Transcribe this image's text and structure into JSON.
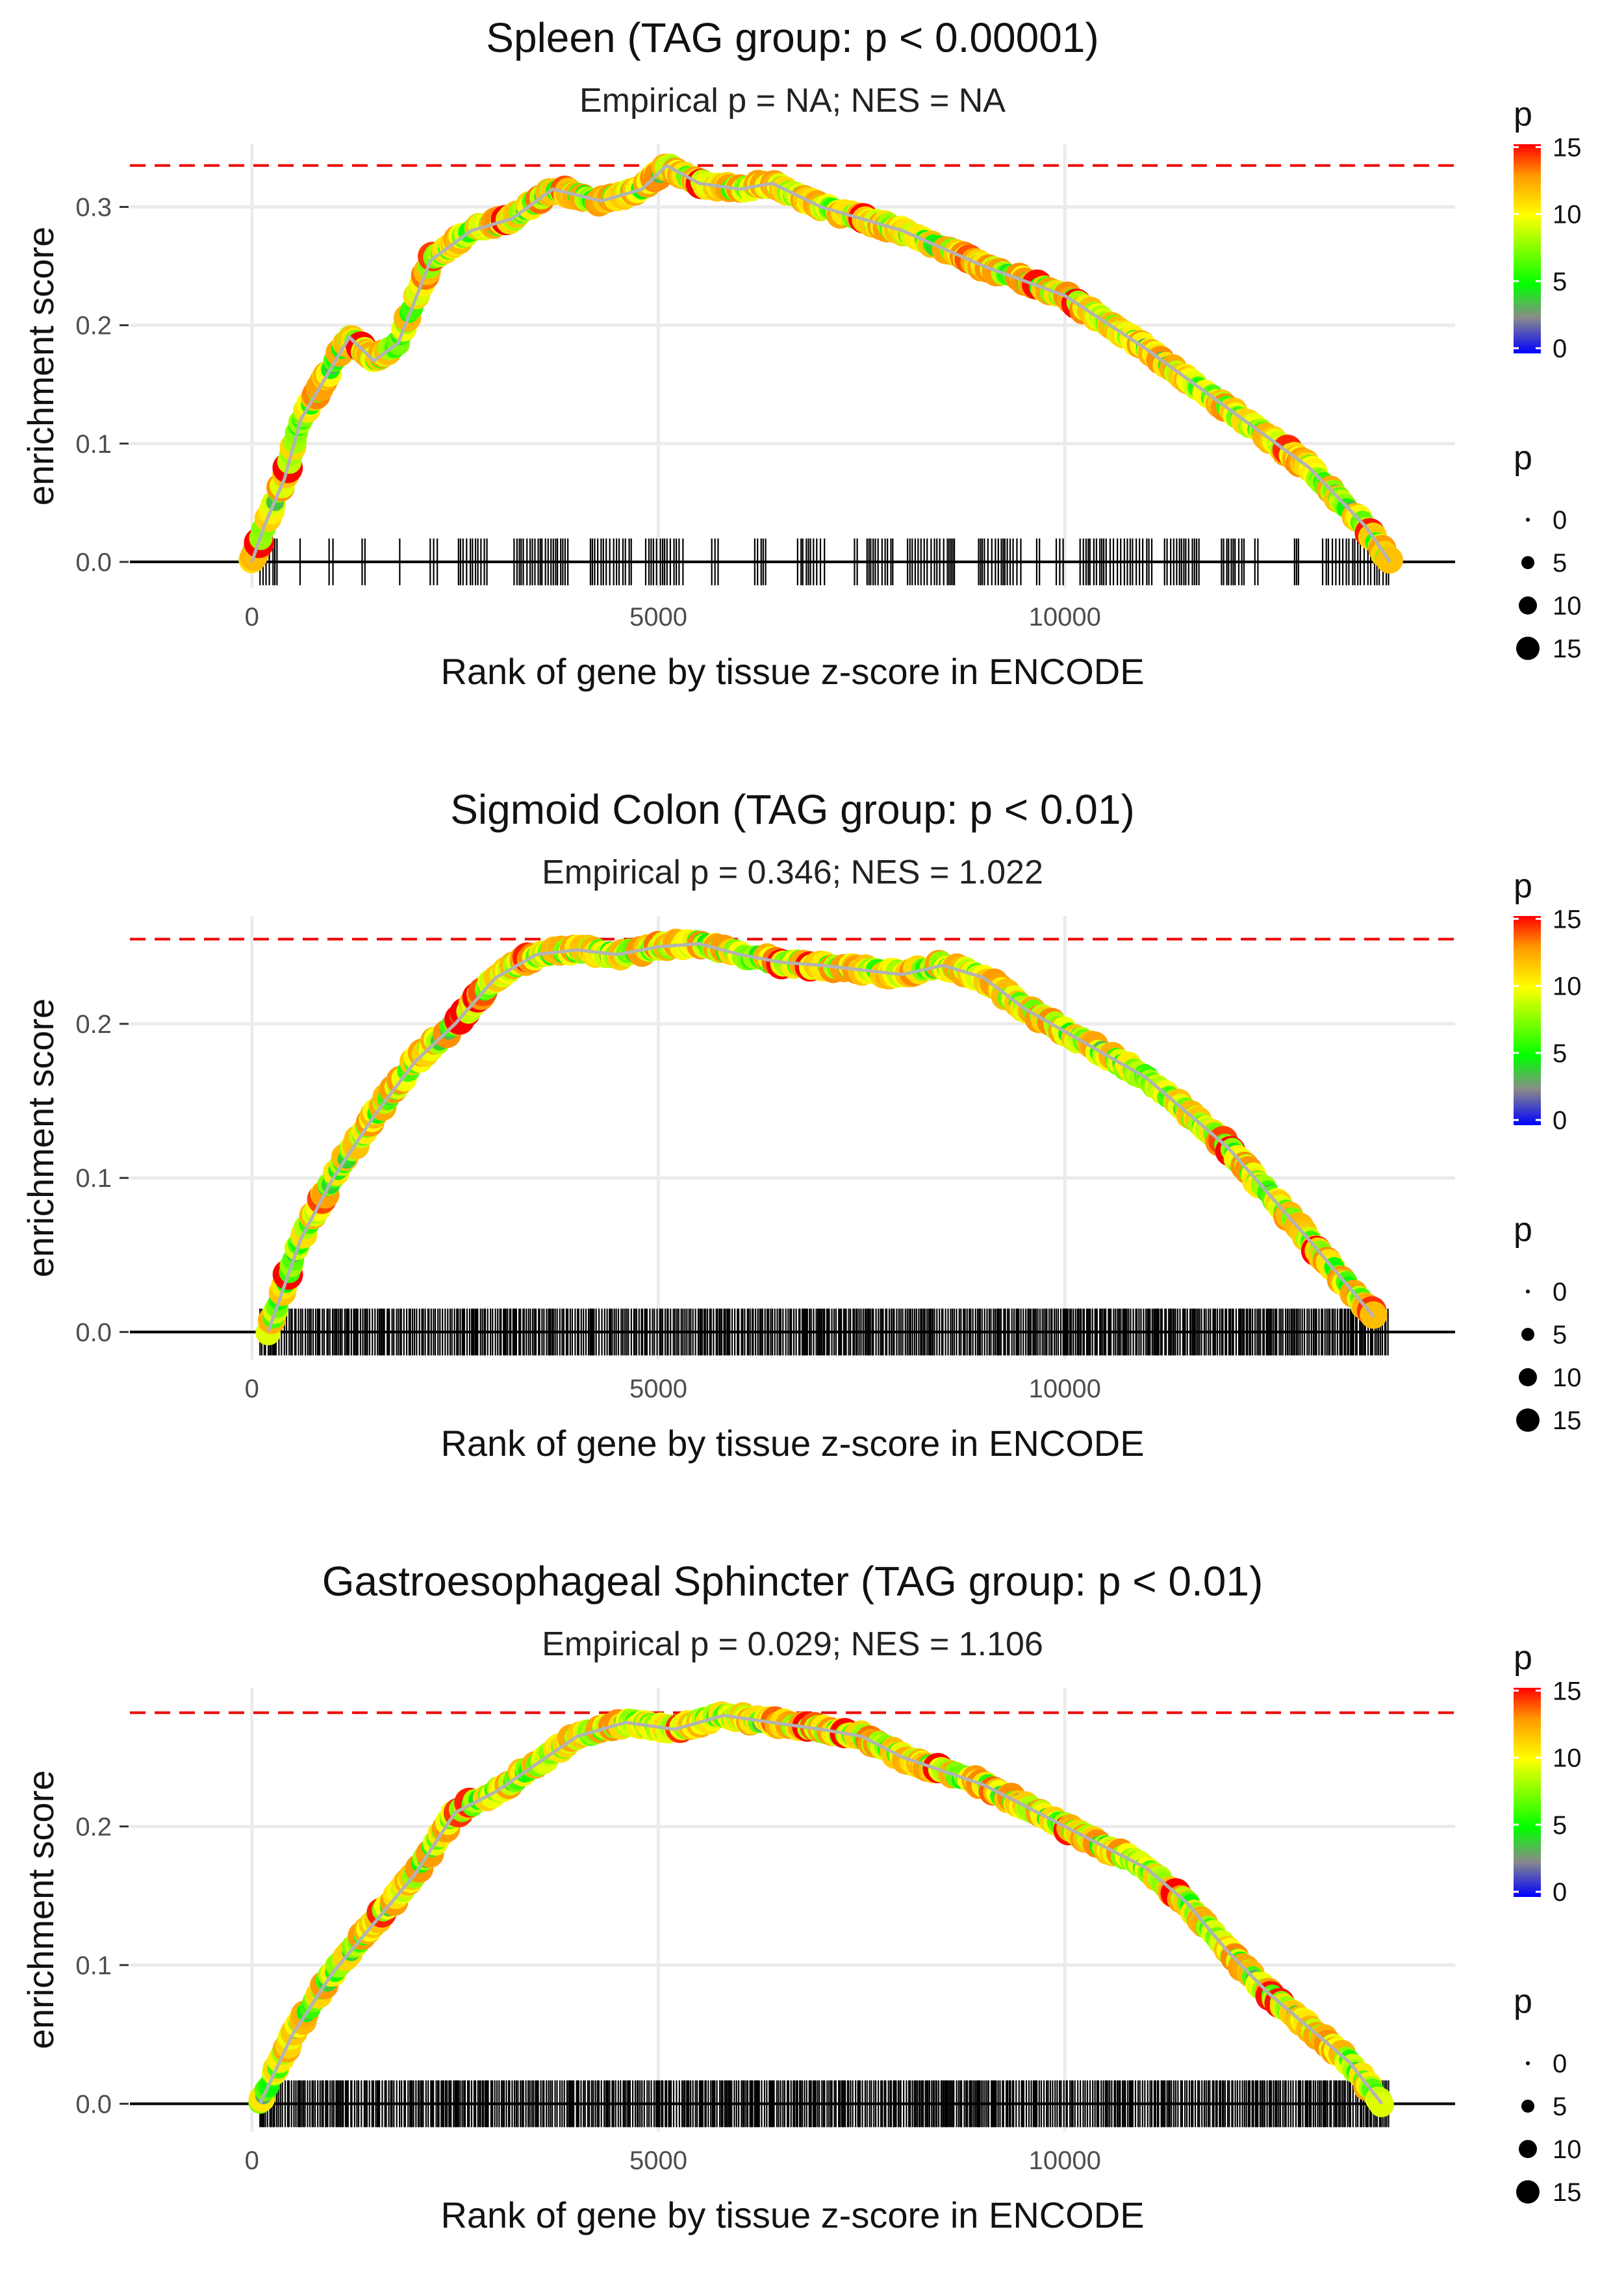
{
  "chart_data": [
    {
      "type": "line",
      "title": "Spleen (TAG group: p < 0.00001)",
      "subtitle": "Empirical p = NA; NES = NA",
      "xlabel": "Rank of gene by tissue z-score in ENCODE",
      "ylabel": "enrichment score",
      "xlim": [
        -1500,
        14800
      ],
      "ylim": [
        -0.022,
        0.353
      ],
      "x_ticks": [
        0,
        5000,
        10000
      ],
      "x_tick_labels": [
        "0",
        "5000",
        "10000"
      ],
      "y_ticks": [
        0.0,
        0.1,
        0.2,
        0.3
      ],
      "y_tick_labels": [
        "0.0",
        "0.1",
        "0.2",
        "0.3"
      ],
      "max_es": 0.335,
      "rug": {
        "start": 100,
        "end": 14000,
        "density": "sparse"
      },
      "curve": [
        [
          0,
          0
        ],
        [
          150,
          0.03
        ],
        [
          400,
          0.07
        ],
        [
          600,
          0.12
        ],
        [
          900,
          0.155
        ],
        [
          1200,
          0.19
        ],
        [
          1500,
          0.17
        ],
        [
          1800,
          0.185
        ],
        [
          2200,
          0.255
        ],
        [
          2700,
          0.28
        ],
        [
          3200,
          0.29
        ],
        [
          3700,
          0.315
        ],
        [
          4300,
          0.305
        ],
        [
          4800,
          0.315
        ],
        [
          5100,
          0.335
        ],
        [
          5500,
          0.32
        ],
        [
          6000,
          0.315
        ],
        [
          6400,
          0.32
        ],
        [
          7000,
          0.3
        ],
        [
          8000,
          0.28
        ],
        [
          9000,
          0.25
        ],
        [
          10000,
          0.225
        ],
        [
          11000,
          0.18
        ],
        [
          12000,
          0.13
        ],
        [
          13000,
          0.08
        ],
        [
          13700,
          0.03
        ],
        [
          14000,
          0
        ]
      ],
      "legend": {
        "color_title": "p",
        "color_ticks": [
          "15",
          "10",
          "5",
          "0"
        ],
        "size_title": "p",
        "size_labels": [
          "0",
          "5",
          "10",
          "15"
        ]
      }
    },
    {
      "type": "line",
      "title": "Sigmoid Colon (TAG group: p < 0.01)",
      "subtitle": "Empirical p = 0.346; NES = 1.022",
      "xlabel": "Rank of gene by tissue z-score in ENCODE",
      "ylabel": "enrichment score",
      "xlim": [
        -1500,
        14800
      ],
      "ylim": [
        -0.018,
        0.27
      ],
      "x_ticks": [
        0,
        5000,
        10000
      ],
      "x_tick_labels": [
        "0",
        "5000",
        "10000"
      ],
      "y_ticks": [
        0.0,
        0.1,
        0.2
      ],
      "y_tick_labels": [
        "0.0",
        "0.1",
        "0.2"
      ],
      "max_es": 0.255,
      "rug": {
        "start": 100,
        "end": 14000,
        "density": "dense"
      },
      "curve": [
        [
          200,
          0
        ],
        [
          600,
          0.06
        ],
        [
          1000,
          0.1
        ],
        [
          1500,
          0.14
        ],
        [
          2000,
          0.175
        ],
        [
          2500,
          0.2
        ],
        [
          3000,
          0.23
        ],
        [
          3500,
          0.245
        ],
        [
          4000,
          0.248
        ],
        [
          4500,
          0.245
        ],
        [
          5000,
          0.25
        ],
        [
          5500,
          0.252
        ],
        [
          6000,
          0.245
        ],
        [
          6500,
          0.24
        ],
        [
          7000,
          0.238
        ],
        [
          7500,
          0.235
        ],
        [
          8000,
          0.232
        ],
        [
          8500,
          0.238
        ],
        [
          9000,
          0.23
        ],
        [
          9500,
          0.21
        ],
        [
          10000,
          0.195
        ],
        [
          11000,
          0.165
        ],
        [
          12000,
          0.12
        ],
        [
          13000,
          0.06
        ],
        [
          13800,
          0.01
        ]
      ],
      "legend": {
        "color_title": "p",
        "color_ticks": [
          "15",
          "10",
          "5",
          "0"
        ],
        "size_title": "p",
        "size_labels": [
          "0",
          "5",
          "10",
          "15"
        ]
      }
    },
    {
      "type": "line",
      "title": "Gastroesophageal Sphincter (TAG group: p < 0.01)",
      "subtitle": "Empirical p = 0.029; NES = 1.106",
      "xlabel": "Rank of gene by tissue z-score in ENCODE",
      "ylabel": "enrichment score",
      "xlim": [
        -1500,
        14800
      ],
      "ylim": [
        -0.02,
        0.3
      ],
      "x_ticks": [
        0,
        5000,
        10000
      ],
      "x_tick_labels": [
        "0",
        "5000",
        "10000"
      ],
      "y_ticks": [
        0.0,
        0.1,
        0.2
      ],
      "y_tick_labels": [
        "0.0",
        "0.1",
        "0.2"
      ],
      "max_es": 0.282,
      "rug": {
        "start": 100,
        "end": 14000,
        "density": "dense"
      },
      "curve": [
        [
          100,
          0
        ],
        [
          500,
          0.05
        ],
        [
          1000,
          0.095
        ],
        [
          1500,
          0.13
        ],
        [
          2000,
          0.165
        ],
        [
          2500,
          0.21
        ],
        [
          3000,
          0.225
        ],
        [
          3500,
          0.245
        ],
        [
          4000,
          0.265
        ],
        [
          4600,
          0.275
        ],
        [
          5200,
          0.27
        ],
        [
          5800,
          0.28
        ],
        [
          6400,
          0.275
        ],
        [
          7000,
          0.27
        ],
        [
          7500,
          0.265
        ],
        [
          8000,
          0.25
        ],
        [
          8500,
          0.24
        ],
        [
          9000,
          0.23
        ],
        [
          9500,
          0.215
        ],
        [
          10000,
          0.2
        ],
        [
          10500,
          0.185
        ],
        [
          11000,
          0.17
        ],
        [
          11500,
          0.145
        ],
        [
          12000,
          0.11
        ],
        [
          12500,
          0.08
        ],
        [
          13000,
          0.055
        ],
        [
          13500,
          0.03
        ],
        [
          13900,
          0
        ]
      ],
      "legend": {
        "color_title": "p",
        "color_ticks": [
          "15",
          "10",
          "5",
          "0"
        ],
        "size_title": "p",
        "size_labels": [
          "0",
          "5",
          "10",
          "15"
        ]
      }
    }
  ]
}
